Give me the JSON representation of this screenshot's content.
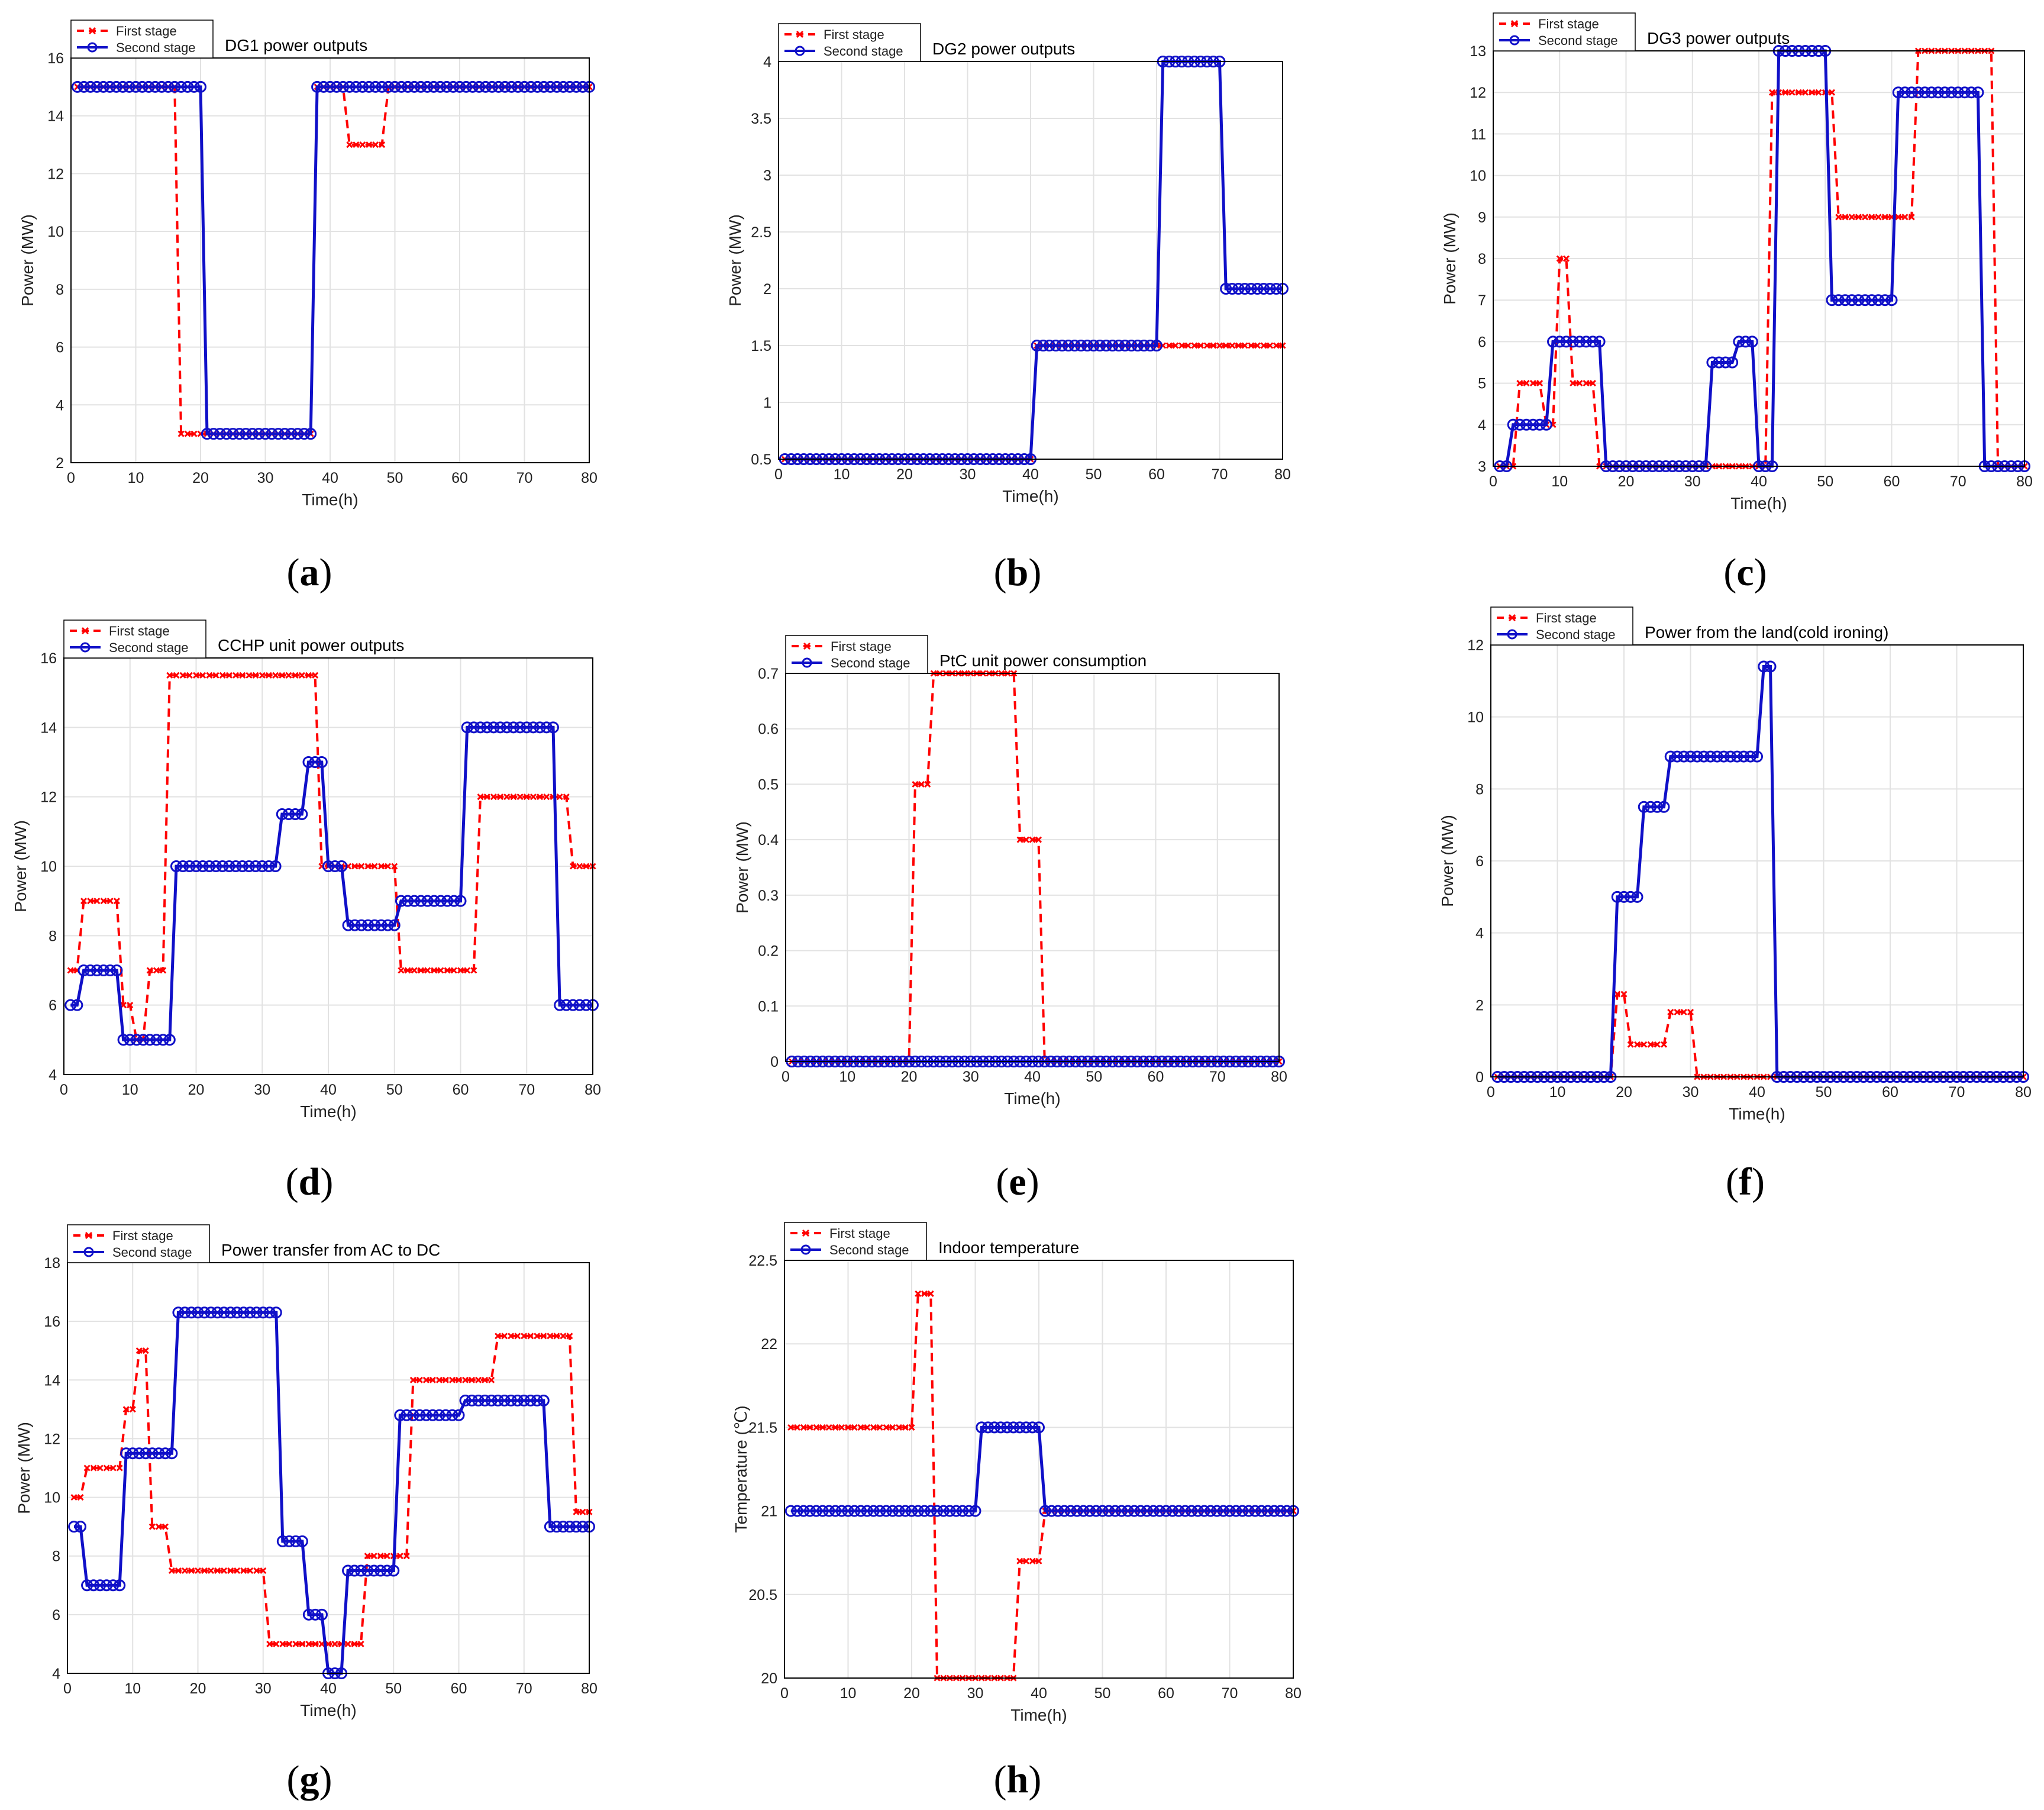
{
  "figure": {
    "colors": {
      "first": "#ff0000",
      "second": "#1010c8",
      "grid": "#e2e2e2",
      "axis": "#000000"
    }
  },
  "chart_data": [
    {
      "id": "a",
      "type": "line",
      "caption": "a",
      "title": "DG1 power outputs",
      "xlabel": "Time(h)",
      "ylabel": "Power (MW)",
      "xlim": [
        0,
        80
      ],
      "ylim": [
        2,
        16
      ],
      "xticks": [
        0,
        10,
        20,
        30,
        40,
        50,
        60,
        70,
        80
      ],
      "yticks": [
        2,
        4,
        6,
        8,
        10,
        12,
        14,
        16
      ],
      "legend": [
        "First stage",
        "Second stage"
      ],
      "series": [
        {
          "name": "First stage",
          "steps": [
            [
              1,
              16,
              15
            ],
            [
              17,
              20,
              3
            ],
            [
              21,
              37,
              3
            ],
            [
              38,
              42,
              15
            ],
            [
              43,
              48,
              13
            ],
            [
              49,
              80,
              15
            ]
          ]
        },
        {
          "name": "Second stage",
          "steps": [
            [
              1,
              20,
              15
            ],
            [
              21,
              37,
              3
            ],
            [
              38,
              80,
              15
            ]
          ]
        }
      ]
    },
    {
      "id": "b",
      "type": "line",
      "caption": "b",
      "title": "DG2 power outputs",
      "xlabel": "Time(h)",
      "ylabel": "Power (MW)",
      "xlim": [
        0,
        80
      ],
      "ylim": [
        0.5,
        4
      ],
      "xticks": [
        0,
        10,
        20,
        30,
        40,
        50,
        60,
        70,
        80
      ],
      "yticks": [
        0.5,
        1,
        1.5,
        2,
        2.5,
        3,
        3.5,
        4
      ],
      "legend": [
        "First stage",
        "Second stage"
      ],
      "series": [
        {
          "name": "First stage",
          "steps": [
            [
              1,
              40,
              0.5
            ],
            [
              41,
              80,
              1.5
            ]
          ]
        },
        {
          "name": "Second stage",
          "steps": [
            [
              1,
              40,
              0.5
            ],
            [
              41,
              60,
              1.5
            ],
            [
              61,
              70,
              4
            ],
            [
              71,
              80,
              2
            ]
          ]
        }
      ]
    },
    {
      "id": "c",
      "type": "line",
      "caption": "c",
      "title": "DG3 power outputs",
      "xlabel": "Time(h)",
      "ylabel": "Power (MW)",
      "xlim": [
        0,
        80
      ],
      "ylim": [
        3,
        13
      ],
      "xticks": [
        0,
        10,
        20,
        30,
        40,
        50,
        60,
        70,
        80
      ],
      "yticks": [
        3,
        4,
        5,
        6,
        7,
        8,
        9,
        10,
        11,
        12,
        13
      ],
      "legend": [
        "First stage",
        "Second stage"
      ],
      "series": [
        {
          "name": "First stage",
          "steps": [
            [
              1,
              3,
              3
            ],
            [
              4,
              7,
              5
            ],
            [
              8,
              9,
              4
            ],
            [
              10,
              11,
              8
            ],
            [
              12,
              15,
              5
            ],
            [
              16,
              41,
              3
            ],
            [
              42,
              51,
              12
            ],
            [
              52,
              63,
              9
            ],
            [
              64,
              75,
              13
            ],
            [
              76,
              80,
              3
            ]
          ]
        },
        {
          "name": "Second stage",
          "steps": [
            [
              1,
              2,
              3
            ],
            [
              3,
              8,
              4
            ],
            [
              9,
              16,
              6
            ],
            [
              17,
              32,
              3
            ],
            [
              33,
              36,
              5.5
            ],
            [
              37,
              39,
              6
            ],
            [
              40,
              42,
              3
            ],
            [
              43,
              50,
              13
            ],
            [
              51,
              60,
              7
            ],
            [
              61,
              73,
              12
            ],
            [
              74,
              80,
              3
            ]
          ]
        }
      ]
    },
    {
      "id": "d",
      "type": "line",
      "caption": "d",
      "title": "CCHP unit power outputs",
      "xlabel": "Time(h)",
      "ylabel": "Power (MW)",
      "xlim": [
        0,
        80
      ],
      "ylim": [
        4,
        16
      ],
      "xticks": [
        0,
        10,
        20,
        30,
        40,
        50,
        60,
        70,
        80
      ],
      "yticks": [
        4,
        6,
        8,
        10,
        12,
        14,
        16
      ],
      "legend": [
        "First stage",
        "Second stage"
      ],
      "series": [
        {
          "name": "First stage",
          "steps": [
            [
              1,
              2,
              7
            ],
            [
              3,
              8,
              9
            ],
            [
              9,
              10,
              6
            ],
            [
              11,
              12,
              5
            ],
            [
              13,
              15,
              7
            ],
            [
              16,
              38,
              15.5
            ],
            [
              39,
              50,
              10
            ],
            [
              51,
              62,
              7
            ],
            [
              63,
              76,
              12
            ],
            [
              77,
              80,
              10
            ]
          ]
        },
        {
          "name": "Second stage",
          "steps": [
            [
              1,
              2,
              6
            ],
            [
              3,
              8,
              7
            ],
            [
              9,
              16,
              5
            ],
            [
              17,
              32,
              10
            ],
            [
              33,
              36,
              11.5
            ],
            [
              37,
              39,
              13
            ],
            [
              40,
              42,
              10
            ],
            [
              43,
              50,
              8.3
            ],
            [
              51,
              60,
              9
            ],
            [
              61,
              74,
              14
            ],
            [
              75,
              80,
              6
            ]
          ]
        }
      ]
    },
    {
      "id": "e",
      "type": "line",
      "caption": "e",
      "title": "PtC unit power consumption",
      "xlabel": "Time(h)",
      "ylabel": "Power (MW)",
      "xlim": [
        0,
        80
      ],
      "ylim": [
        0,
        0.7
      ],
      "xticks": [
        0,
        10,
        20,
        30,
        40,
        50,
        60,
        70,
        80
      ],
      "yticks": [
        0,
        0.1,
        0.2,
        0.3,
        0.4,
        0.5,
        0.6,
        0.7
      ],
      "legend": [
        "First stage",
        "Second stage"
      ],
      "series": [
        {
          "name": "First stage",
          "steps": [
            [
              1,
              20,
              0
            ],
            [
              21,
              23,
              0.5
            ],
            [
              24,
              37,
              0.7
            ],
            [
              38,
              41,
              0.4
            ],
            [
              42,
              80,
              0
            ]
          ]
        },
        {
          "name": "Second stage",
          "steps": [
            [
              1,
              80,
              0
            ]
          ]
        }
      ]
    },
    {
      "id": "f",
      "type": "line",
      "caption": "f",
      "title": "Power from the land(cold ironing)",
      "xlabel": "Time(h)",
      "ylabel": "Power (MW)",
      "xlim": [
        0,
        80
      ],
      "ylim": [
        0,
        12
      ],
      "xticks": [
        0,
        10,
        20,
        30,
        40,
        50,
        60,
        70,
        80
      ],
      "yticks": [
        0,
        2,
        4,
        6,
        8,
        10,
        12
      ],
      "legend": [
        "First stage",
        "Second stage"
      ],
      "series": [
        {
          "name": "First stage",
          "steps": [
            [
              1,
              18,
              0
            ],
            [
              19,
              20,
              2.3
            ],
            [
              21,
              26,
              0.9
            ],
            [
              27,
              30,
              1.8
            ],
            [
              31,
              80,
              0
            ]
          ]
        },
        {
          "name": "Second stage",
          "steps": [
            [
              1,
              18,
              0
            ],
            [
              19,
              22,
              5
            ],
            [
              23,
              26,
              7.5
            ],
            [
              27,
              40,
              8.9
            ],
            [
              41,
              42,
              11.4
            ],
            [
              43,
              80,
              0
            ]
          ]
        }
      ]
    },
    {
      "id": "g",
      "type": "line",
      "caption": "g",
      "title": "Power transfer from AC to DC",
      "xlabel": "Time(h)",
      "ylabel": "Power (MW)",
      "xlim": [
        0,
        80
      ],
      "ylim": [
        4,
        18
      ],
      "xticks": [
        0,
        10,
        20,
        30,
        40,
        50,
        60,
        70,
        80
      ],
      "yticks": [
        4,
        6,
        8,
        10,
        12,
        14,
        16,
        18
      ],
      "legend": [
        "First stage",
        "Second stage"
      ],
      "series": [
        {
          "name": "First stage",
          "steps": [
            [
              1,
              2,
              10
            ],
            [
              3,
              8,
              11
            ],
            [
              9,
              10,
              13
            ],
            [
              11,
              12,
              15
            ],
            [
              13,
              15,
              9
            ],
            [
              16,
              30,
              7.5
            ],
            [
              31,
              45,
              5
            ],
            [
              46,
              52,
              8
            ],
            [
              53,
              65,
              14
            ],
            [
              66,
              77,
              15.5
            ],
            [
              78,
              80,
              9.5
            ]
          ]
        },
        {
          "name": "Second stage",
          "steps": [
            [
              1,
              2,
              9
            ],
            [
              3,
              8,
              7
            ],
            [
              9,
              16,
              11.5
            ],
            [
              17,
              32,
              16.3
            ],
            [
              33,
              36,
              8.5
            ],
            [
              37,
              39,
              6
            ],
            [
              40,
              42,
              4
            ],
            [
              43,
              50,
              7.5
            ],
            [
              51,
              60,
              12.8
            ],
            [
              61,
              73,
              13.3
            ],
            [
              74,
              80,
              9
            ]
          ]
        }
      ]
    },
    {
      "id": "h",
      "type": "line",
      "caption": "h",
      "title": "Indoor temperature",
      "xlabel": "Time(h)",
      "ylabel": "Temperature (℃)",
      "xlim": [
        0,
        80
      ],
      "ylim": [
        20,
        22.5
      ],
      "xticks": [
        0,
        10,
        20,
        30,
        40,
        50,
        60,
        70,
        80
      ],
      "yticks": [
        20,
        20.5,
        21,
        21.5,
        22,
        22.5
      ],
      "legend": [
        "First stage",
        "Second stage"
      ],
      "series": [
        {
          "name": "First stage",
          "steps": [
            [
              1,
              20,
              21.5
            ],
            [
              21,
              23,
              22.3
            ],
            [
              24,
              36,
              20
            ],
            [
              37,
              40,
              20.7
            ],
            [
              41,
              80,
              21
            ]
          ]
        },
        {
          "name": "Second stage",
          "steps": [
            [
              1,
              30,
              21
            ],
            [
              31,
              40,
              21.5
            ],
            [
              41,
              80,
              21
            ]
          ]
        }
      ]
    }
  ]
}
